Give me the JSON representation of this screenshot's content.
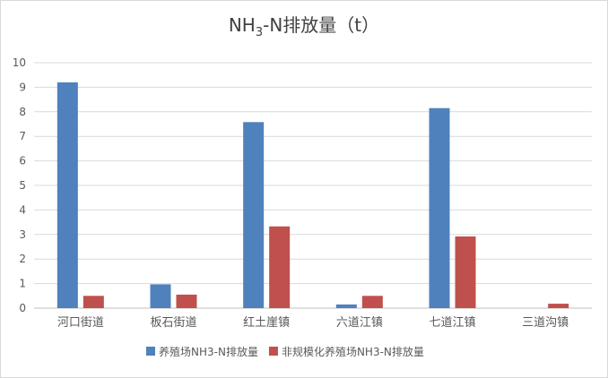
{
  "chart_data": {
    "type": "bar",
    "title_main": "NH",
    "title_sub": "3",
    "title_rest": "-N排放量（t）",
    "categories": [
      "河口街道",
      "板石街道",
      "红土崖镇",
      "六道江镇",
      "七道江镇",
      "三道沟镇"
    ],
    "series": [
      {
        "name": "养殖场NH3-N排放量",
        "color": "#4f81bd",
        "values": [
          9.2,
          0.97,
          7.58,
          0.15,
          8.15,
          0
        ]
      },
      {
        "name": "非规模化养殖场NH3-N排放量",
        "color": "#c0504d",
        "values": [
          0.5,
          0.55,
          3.33,
          0.5,
          2.92,
          0.18
        ]
      }
    ],
    "y_ticks": [
      "0",
      "1",
      "2",
      "3",
      "4",
      "5",
      "6",
      "7",
      "8",
      "9",
      "10"
    ],
    "ylim": [
      0,
      10
    ],
    "grid": true,
    "legend_position": "bottom"
  }
}
